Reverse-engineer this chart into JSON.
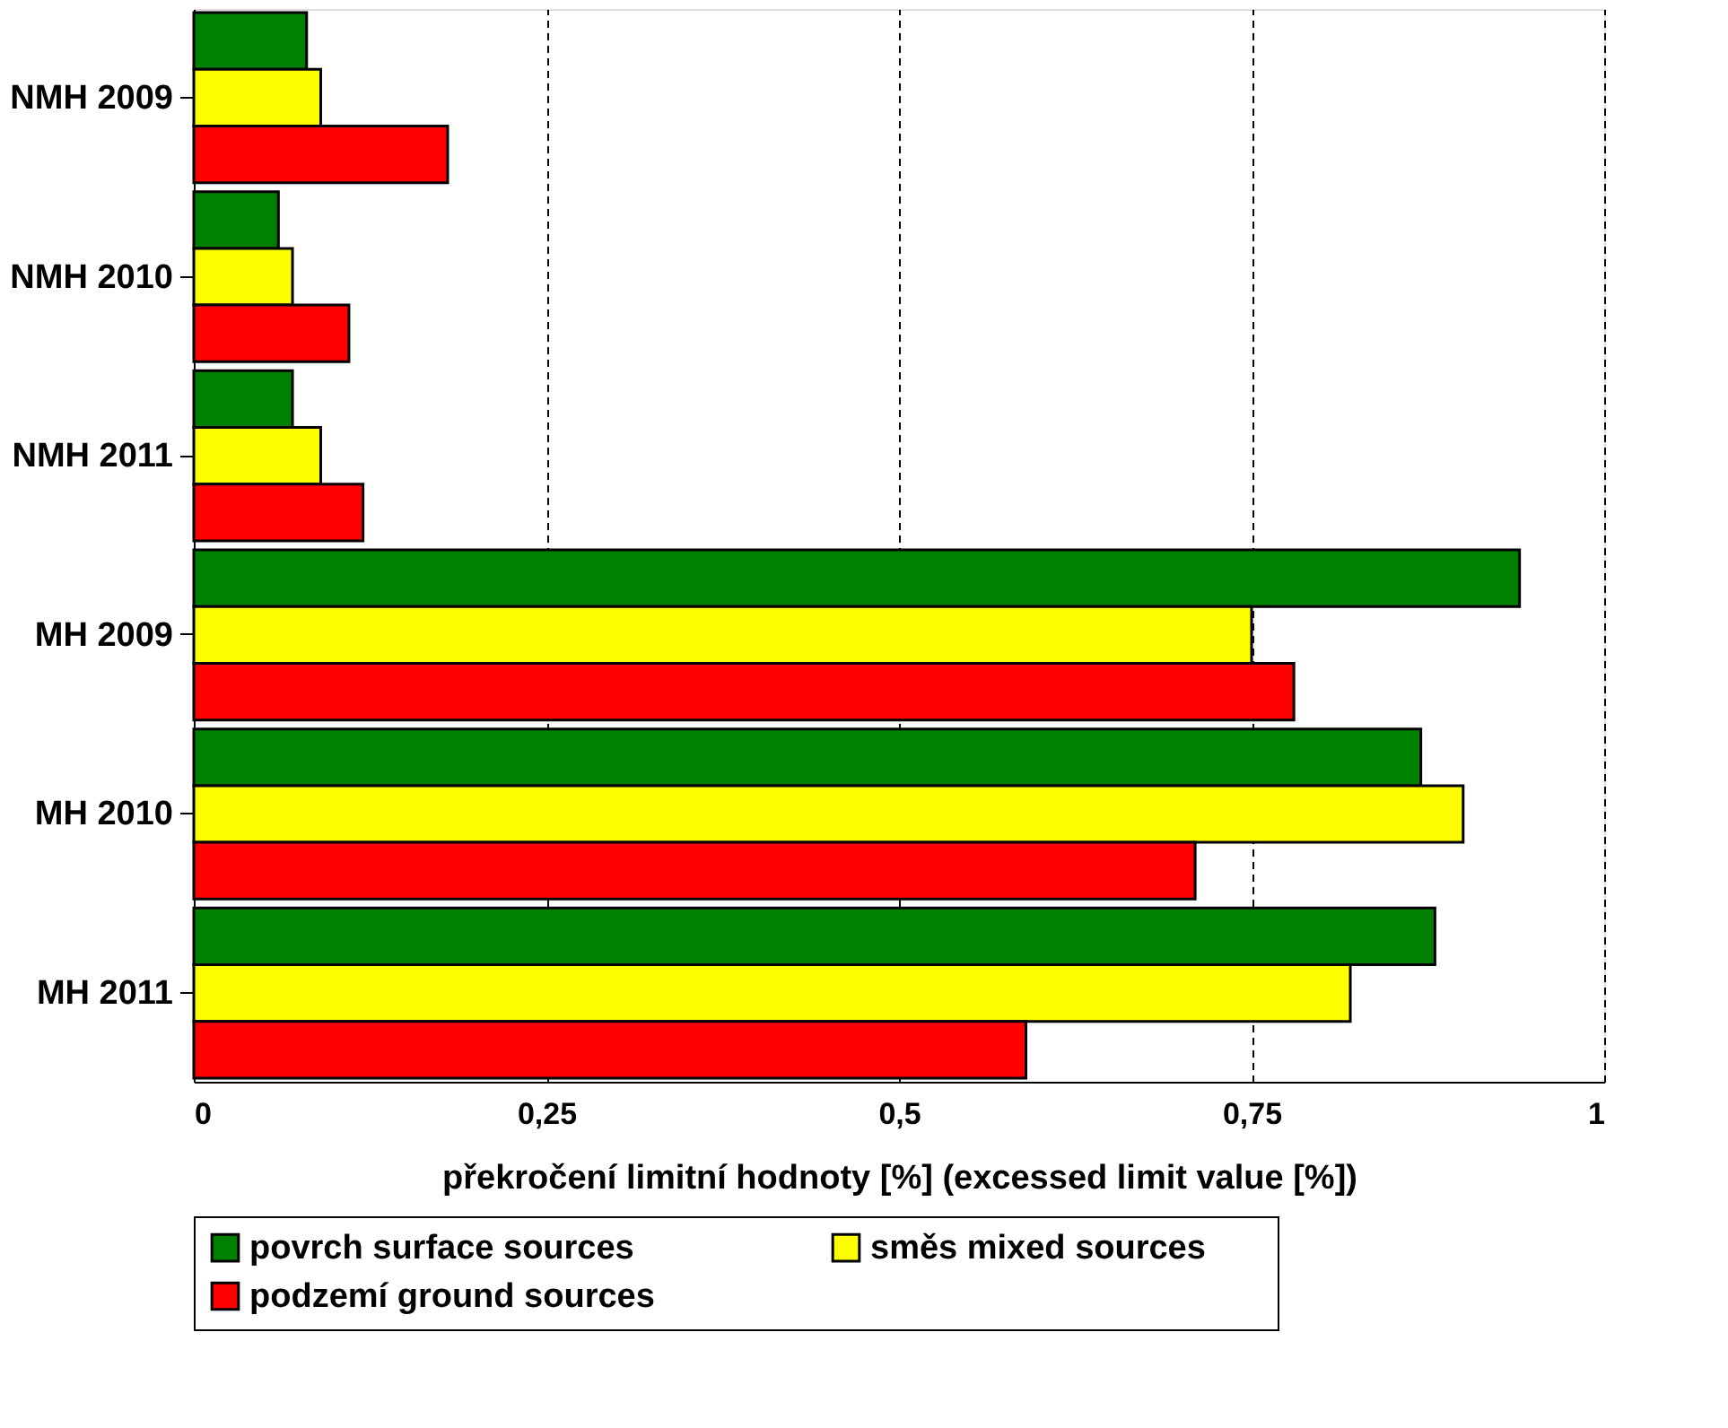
{
  "chart_data": {
    "type": "bar",
    "orientation": "horizontal",
    "xlabel": "překročení limitní hodnoty [%]  (excessed limit value [%])",
    "categories": [
      "NMH 2009",
      "NMH 2010",
      "NMH 2011",
      "MH 2009",
      "MH 2010",
      "MH 2011"
    ],
    "series": [
      {
        "name": "povrch     surface sources",
        "color": "#008000",
        "values": [
          0.08,
          0.06,
          0.07,
          0.94,
          0.87,
          0.88
        ]
      },
      {
        "name": "směs       mixed sources",
        "color": "#ffff00",
        "values": [
          0.09,
          0.07,
          0.09,
          0.75,
          0.9,
          0.82
        ]
      },
      {
        "name": "podzemí    ground sources",
        "color": "#ff0000",
        "values": [
          0.18,
          0.11,
          0.12,
          0.78,
          0.71,
          0.59
        ]
      }
    ],
    "xlim": [
      0,
      1
    ],
    "xticks": [
      0,
      {
        "value": 0.25,
        "label": "0,25"
      },
      {
        "value": 0.5,
        "label": "0,5"
      },
      {
        "value": 0.75,
        "label": "0,75"
      },
      1
    ],
    "grid": "x",
    "legend": "bottom"
  }
}
